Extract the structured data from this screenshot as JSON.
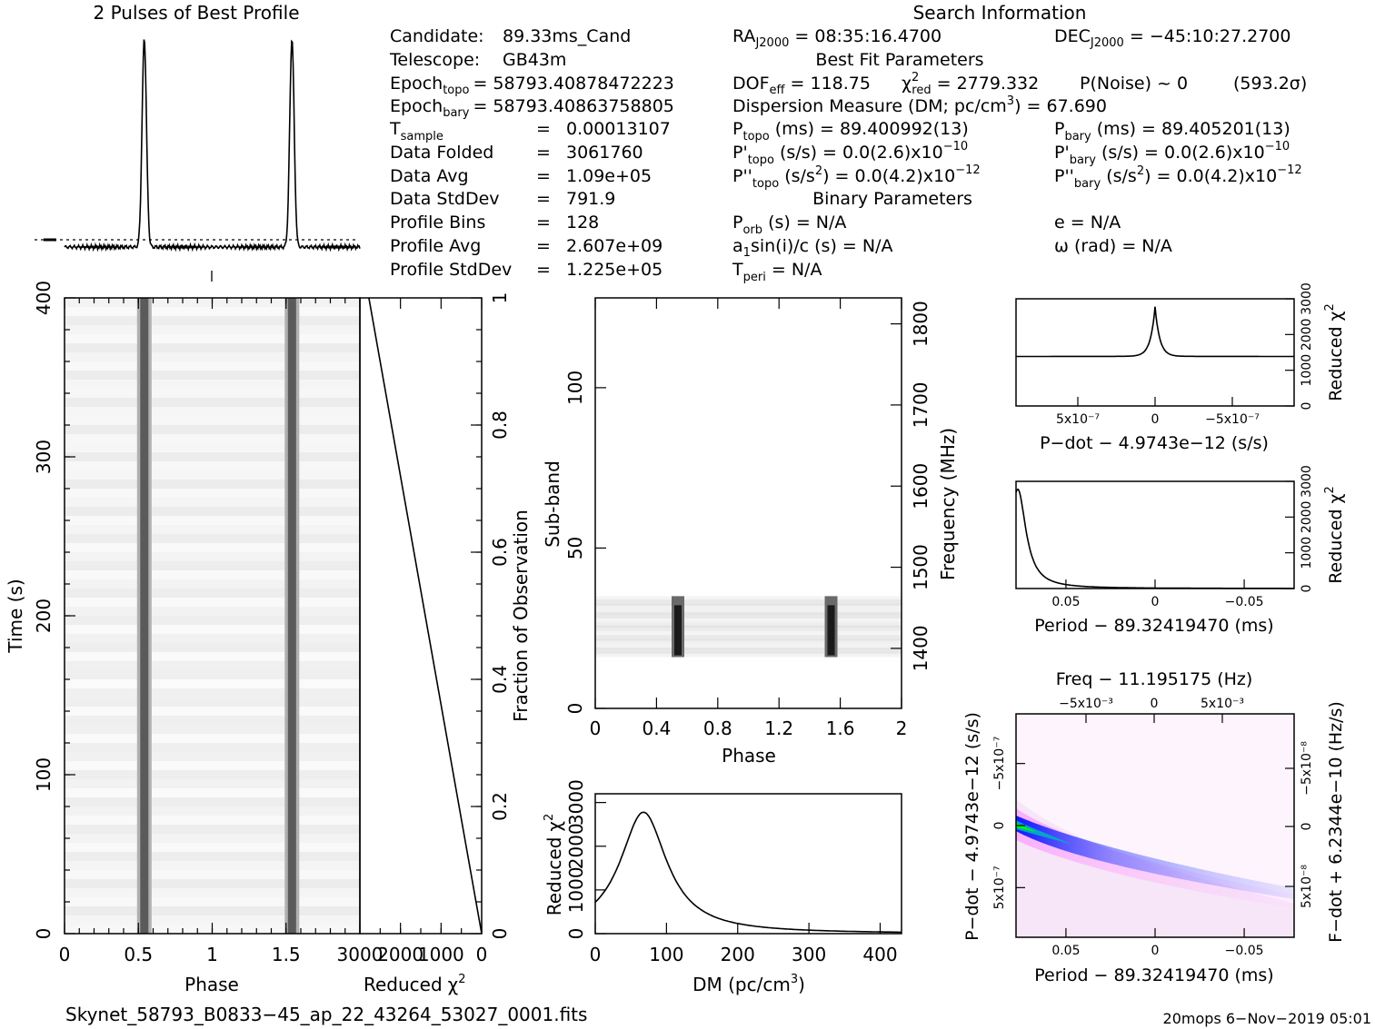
{
  "titles": {
    "profile": "2 Pulses of Best Profile",
    "search_info": "Search Information",
    "best_fit": "Best Fit Parameters",
    "binary": "Binary Parameters"
  },
  "info_left": [
    {
      "label": "Candidate:",
      "value": "89.33ms_Cand"
    },
    {
      "label": "Telescope:",
      "value": "GB43m"
    },
    {
      "label": "Epoch",
      "sub": "topo",
      "value": "= 58793.40878472223"
    },
    {
      "label": "Epoch",
      "sub": "bary",
      "value": "= 58793.40863758805"
    },
    {
      "label": "T",
      "sub": "sample",
      "eq": "=",
      "value": "0.00013107"
    },
    {
      "label": "Data Folded",
      "eq": "=",
      "value": "3061760"
    },
    {
      "label": "Data Avg",
      "eq": "=",
      "value": "1.09e+05"
    },
    {
      "label": "Data StdDev",
      "eq": "=",
      "value": "791.9"
    },
    {
      "label": "Profile Bins",
      "eq": "=",
      "value": "128"
    },
    {
      "label": "Profile Avg",
      "eq": "=",
      "value": "2.607e+09"
    },
    {
      "label": "Profile StdDev",
      "eq": "=",
      "value": "1.225e+05"
    }
  ],
  "info_mid": {
    "ra": "RA",
    "ra_sub": "J2000",
    "ra_val": " = 08:35:16.4700",
    "dec": "DEC",
    "dec_sub": "J2000",
    "dec_val": " = −45:10:27.2700",
    "dof": "DOF",
    "dof_sub": "eff",
    "dof_val": " = 118.75",
    "chi": "χ",
    "chi_sup": "2",
    "chi_sub": "red",
    "chi_val": " = 2779.332",
    "pnoise": "P(Noise) ~ 0",
    "sigma": "(593.2σ)",
    "dm": "Dispersion Measure (DM; pc/cm",
    "dm_sup": "3",
    "dm_val": ") = 67.690",
    "ptopo": "P",
    "ptopo_sub": "topo",
    "ptopo_val": " (ms) =  89.400992(13)",
    "pbary": "P",
    "pbary_sub": "bary",
    "pbary_val": " (ms) =  89.405201(13)",
    "pdtopo": "P'",
    "pdtopo_sub": "topo",
    "pdtopo_val": " (s/s) = 0.0(2.6)x10",
    "pdtopo_exp": "−10",
    "pdbary": "P'",
    "pdbary_sub": "bary",
    "pdbary_val": " (s/s) = 0.0(2.6)x10",
    "pdbary_exp": "−10",
    "pddtopo": "P''",
    "pddtopo_sub": "topo",
    "pddtopo_val": " (s/s",
    "pddtopo_sup2": "2",
    "pddtopo_val2": ") = 0.0(4.2)x10",
    "pddtopo_exp": "−12",
    "pddbary": "P''",
    "pddbary_sub": "bary",
    "pddbary_val": " (s/s",
    "pddbary_sup2": "2",
    "pddbary_val2": ") = 0.0(4.2)x10",
    "pddbary_exp": "−12",
    "porb": "P",
    "porb_sub": "orb",
    "porb_val": " (s) = N/A",
    "ecc": "e = N/A",
    "a1": "a",
    "a1_sub": "1",
    "a1_val": "sin(i)/c (s) = N/A",
    "omega": "ω (rad) = N/A",
    "tperi": "T",
    "tperi_sub": "peri",
    "tperi_val": " = N/A"
  },
  "footer": {
    "filename": "Skynet_58793_B0833−45_ap_22_43264_53027_0001.fits",
    "stamp": "20mops   6−Nov−2019 05:01"
  },
  "chart_data": [
    {
      "id": "pulse-profile",
      "type": "line",
      "title": "2 Pulses of Best Profile",
      "x_range": [
        0,
        2
      ],
      "pulse_phases": [
        0.54,
        1.54
      ],
      "pulse_width_phase": 0.05,
      "baseline_dotted": true
    },
    {
      "id": "time-phase",
      "type": "heatmap",
      "xlabel": "Phase",
      "ylabel": "Time (s)",
      "x_range": [
        0,
        2
      ],
      "y_range": [
        0,
        400
      ],
      "x_ticks": [
        "0",
        "0.5",
        "1",
        "1.5"
      ],
      "y_ticks": [
        "0",
        "100",
        "200",
        "300",
        "400"
      ],
      "pulse_phases": [
        0.54,
        1.54
      ]
    },
    {
      "id": "chi-vs-fraction",
      "type": "line",
      "xlabel": "Reduced",
      "xlabel_chi": "χ",
      "xlabel_sup": "2",
      "ylabel": "Fraction of Observation",
      "x_range": [
        3000,
        0
      ],
      "y_range": [
        0,
        1
      ],
      "x_ticks": [
        "3000",
        "2000",
        "1000",
        "0"
      ],
      "y_ticks": [
        "0",
        "0.2",
        "0.4",
        "0.6",
        "0.8",
        "1"
      ],
      "points": [
        [
          0,
          0
        ],
        [
          2779,
          1
        ]
      ]
    },
    {
      "id": "subband-phase",
      "type": "heatmap",
      "xlabel": "Phase",
      "ylabel": "Sub-band",
      "ylabel_right": "Frequency (MHz)",
      "x_range": [
        0,
        2
      ],
      "y_range": [
        0,
        128
      ],
      "y2_range": [
        1326,
        1832
      ],
      "x_ticks": [
        "0",
        "0.4",
        "0.8",
        "1.2",
        "1.6",
        "2"
      ],
      "y_ticks": [
        "0",
        "50",
        "100"
      ],
      "y2_ticks": [
        "1400",
        "1500",
        "1600",
        "1700",
        "1800"
      ],
      "occupied_subbands": [
        16,
        35
      ],
      "pulse_phases": [
        0.54,
        1.54
      ]
    },
    {
      "id": "dm-curve",
      "type": "line",
      "xlabel": "DM (pc/cm",
      "xlabel_sup": "3",
      "xlabel_end": ")",
      "ylabel": "Reduced",
      "ylabel_chi": "χ",
      "ylabel_sup": "2",
      "x_range": [
        0,
        430
      ],
      "y_range": [
        0,
        3200
      ],
      "x_ticks": [
        "0",
        "100",
        "200",
        "300",
        "400"
      ],
      "y_ticks": [
        "0",
        "1000",
        "2000",
        "3000"
      ],
      "peak_dm": 67.69,
      "peak_chi2": 2779
    },
    {
      "id": "pdot-chi",
      "type": "line",
      "xlabel": "P−dot − 4.9743e−12 (s/s)",
      "ylabel": "Reduced",
      "ylabel_chi": "χ",
      "ylabel_sup": "2",
      "x_range": [
        9e-07,
        -9e-07
      ],
      "y_range": [
        0,
        3000
      ],
      "x_ticks": [
        "5x10⁻⁷",
        "0",
        "−5x10⁻⁷"
      ],
      "y_ticks": [
        "0",
        "1000",
        "2000",
        "3000"
      ],
      "peak_chi2": 2779
    },
    {
      "id": "period-chi",
      "type": "line",
      "xlabel": "Period − 89.32419470 (ms)",
      "ylabel": "Reduced",
      "ylabel_chi": "χ",
      "ylabel_sup": "2",
      "x_range": [
        0.078,
        -0.078
      ],
      "y_range": [
        0,
        3000
      ],
      "x_ticks": [
        "0.05",
        "0",
        "−0.05"
      ],
      "y_ticks": [
        "0",
        "1000",
        "2000",
        "3000"
      ],
      "peak_period_offset": 0.077,
      "peak_chi2": 2779
    },
    {
      "id": "ppdot-plane",
      "type": "heatmap",
      "title": "Freq − 11.195175 (Hz)",
      "xlabel": "Period − 89.32419470 (ms)",
      "ylabel": "P−dot − 4.9743e−12 (s/s)",
      "ylabel_right": "F−dot + 6.2344e−10 (Hz/s)",
      "x_range": [
        0.078,
        -0.078
      ],
      "y_range": [
        9e-07,
        -9e-07
      ],
      "x_ticks": [
        "0.05",
        "0",
        "−0.05"
      ],
      "top_ticks": [
        "−5x10⁻³",
        "0",
        "5x10⁻³"
      ],
      "y_ticks": [
        "5x10⁻⁷",
        "0",
        "−5x10⁻⁷"
      ],
      "y2_ticks": [
        "−5x10⁻⁸",
        "0",
        "5x10⁻⁸"
      ],
      "peak": [
        0.077,
        0
      ],
      "colors": [
        "#ffffff",
        "#ff80ff",
        "#0000ff",
        "#00c0c0",
        "#00ff00"
      ]
    }
  ]
}
